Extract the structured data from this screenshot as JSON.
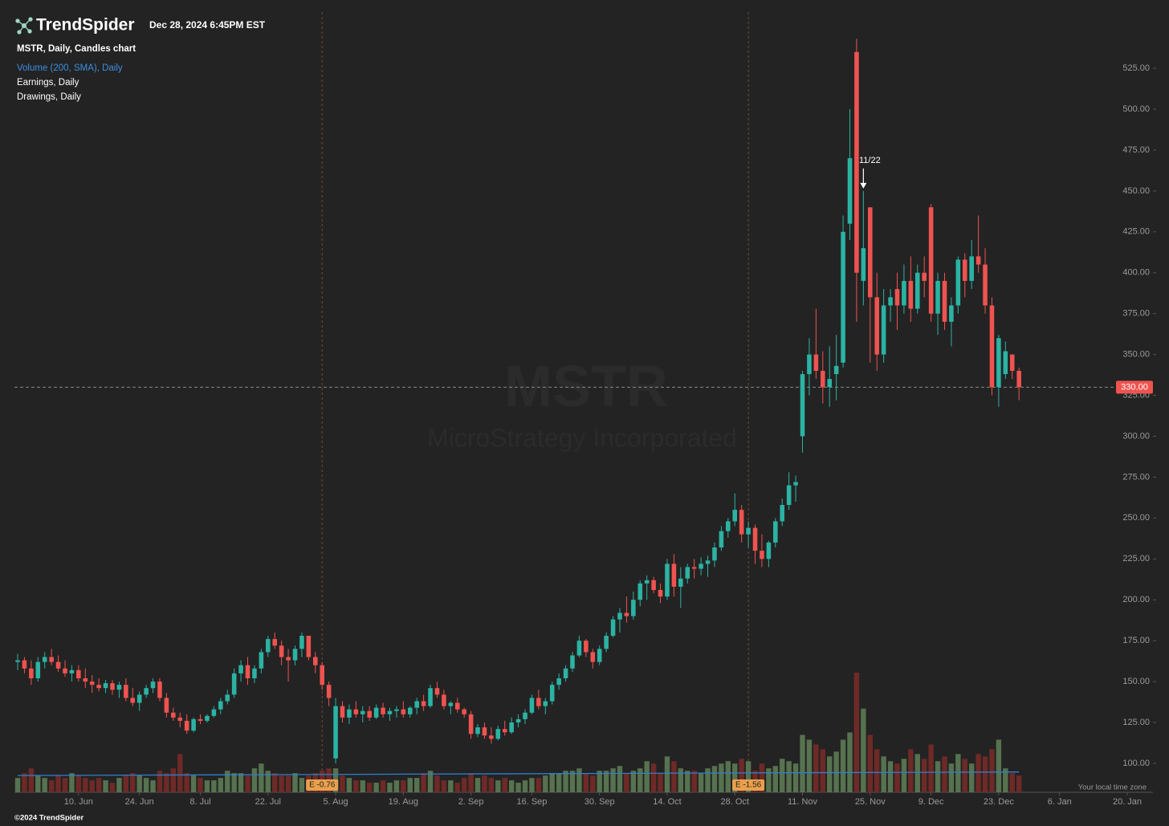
{
  "header": {
    "brand": "TrendSpider",
    "timestamp": "Dec 28, 2024 6:45PM EST"
  },
  "footer": {
    "copyright": "©2024 TrendSpider",
    "timezone": "Your local time zone"
  },
  "chart_data": {
    "type": "candlestick",
    "title": "MSTR, Daily, Candles chart",
    "indicators": [
      "Volume (200, SMA), Daily",
      "Earnings, Daily",
      "Drawings, Daily"
    ],
    "watermark": {
      "symbol": "MSTR",
      "name": "MicroStrategy Incorporated"
    },
    "up_color": "#2bb3a3",
    "down_color": "#ef5350",
    "xlim": [
      0,
      164
    ],
    "xticks": [
      {
        "value": 9,
        "label": "10. Jun"
      },
      {
        "value": 18,
        "label": "24. Jun"
      },
      {
        "value": 27,
        "label": "8. Jul"
      },
      {
        "value": 37,
        "label": "22. Jul"
      },
      {
        "value": 47,
        "label": "5. Aug"
      },
      {
        "value": 57,
        "label": "19. Aug"
      },
      {
        "value": 67,
        "label": "2. Sep"
      },
      {
        "value": 76,
        "label": "16. Sep"
      },
      {
        "value": 86,
        "label": "30. Sep"
      },
      {
        "value": 96,
        "label": "14. Oct"
      },
      {
        "value": 106,
        "label": "28. Oct"
      },
      {
        "value": 116,
        "label": "11. Nov"
      },
      {
        "value": 126,
        "label": "25. Nov"
      },
      {
        "value": 135,
        "label": "9. Dec"
      },
      {
        "value": 145,
        "label": "23. Dec"
      },
      {
        "value": 154,
        "label": "6. Jan"
      },
      {
        "value": 164,
        "label": "20. Jan"
      }
    ],
    "ylim": [
      82.3,
      559.4
    ],
    "yticks": [
      {
        "value": 100,
        "label": "100.00"
      },
      {
        "value": 125,
        "label": "125.00"
      },
      {
        "value": 150,
        "label": "150.00"
      },
      {
        "value": 175,
        "label": "175.00"
      },
      {
        "value": 200,
        "label": "200.00"
      },
      {
        "value": 225,
        "label": "225.00"
      },
      {
        "value": 250,
        "label": "250.00"
      },
      {
        "value": 275,
        "label": "275.00"
      },
      {
        "value": 300,
        "label": "300.00"
      },
      {
        "value": 325,
        "label": "325.00"
      },
      {
        "value": 350,
        "label": "350.00"
      },
      {
        "value": 375,
        "label": "375.00"
      },
      {
        "value": 400,
        "label": "400.00"
      },
      {
        "value": 425,
        "label": "425.00"
      },
      {
        "value": 450,
        "label": "450.00"
      },
      {
        "value": 475,
        "label": "475.00"
      },
      {
        "value": 500,
        "label": "500.00"
      },
      {
        "value": 525,
        "label": "525.00"
      }
    ],
    "open": [
      162,
      163,
      158,
      152,
      162,
      165,
      162,
      158,
      155,
      157,
      152,
      150,
      148,
      146,
      149,
      145,
      148,
      140,
      137,
      142,
      146,
      150,
      140,
      131,
      128,
      126,
      120,
      127,
      126,
      129,
      133,
      138,
      142,
      155,
      160,
      152,
      158,
      168,
      176,
      172,
      165,
      163,
      170,
      178,
      165,
      160,
      148,
      103,
      135,
      128,
      133,
      130,
      132,
      128,
      134,
      130,
      132,
      133,
      130,
      134,
      138,
      135,
      146,
      142,
      135,
      137,
      133,
      130,
      118,
      122,
      117,
      115,
      121,
      119,
      125,
      127,
      131,
      140,
      135,
      138,
      148,
      152,
      158,
      166,
      175,
      168,
      162,
      170,
      178,
      188,
      192,
      190,
      200,
      210,
      212,
      206,
      202,
      222,
      208,
      213,
      220,
      219,
      222,
      224,
      232,
      242,
      248,
      255,
      240,
      244,
      230,
      225,
      235,
      248,
      258,
      270,
      300,
      338,
      350,
      340,
      330,
      338,
      345,
      430,
      535,
      395,
      440,
      385,
      350,
      380,
      390,
      380,
      395,
      378,
      400,
      440,
      375,
      395,
      370,
      380,
      408,
      395,
      410,
      405,
      380,
      330,
      338,
      350,
      340
    ],
    "high": [
      167,
      165,
      163,
      165,
      168,
      170,
      166,
      163,
      160,
      160,
      158,
      154,
      152,
      151,
      151,
      150,
      152,
      146,
      144,
      148,
      152,
      152,
      143,
      134,
      131,
      130,
      128,
      130,
      130,
      135,
      140,
      145,
      158,
      163,
      165,
      160,
      170,
      178,
      180,
      175,
      170,
      172,
      180,
      178,
      168,
      162,
      150,
      140,
      138,
      136,
      138,
      135,
      135,
      136,
      137,
      134,
      135,
      138,
      135,
      140,
      142,
      148,
      150,
      145,
      138,
      140,
      134,
      132,
      124,
      125,
      122,
      123,
      126,
      128,
      130,
      133,
      142,
      145,
      140,
      150,
      155,
      160,
      168,
      178,
      176,
      170,
      172,
      180,
      190,
      195,
      202,
      205,
      212,
      215,
      214,
      210,
      225,
      228,
      220,
      222,
      225,
      226,
      227,
      235,
      245,
      250,
      265,
      258,
      248,
      246,
      240,
      236,
      250,
      262,
      278,
      276,
      340,
      360,
      378,
      352,
      355,
      362,
      435,
      500,
      543,
      450,
      440,
      400,
      390,
      390,
      400,
      405,
      410,
      405,
      410,
      442,
      400,
      400,
      385,
      410,
      412,
      420,
      435,
      415,
      385,
      362,
      358,
      350,
      342
    ],
    "low": [
      157,
      155,
      148,
      150,
      158,
      160,
      156,
      153,
      150,
      150,
      146,
      143,
      144,
      143,
      142,
      140,
      138,
      135,
      132,
      140,
      143,
      138,
      128,
      126,
      122,
      118,
      119,
      124,
      125,
      128,
      130,
      136,
      140,
      150,
      148,
      149,
      155,
      165,
      170,
      160,
      150,
      160,
      165,
      163,
      155,
      145,
      135,
      100,
      125,
      124,
      128,
      125,
      126,
      127,
      128,
      126,
      128,
      128,
      128,
      130,
      132,
      134,
      140,
      133,
      130,
      131,
      128,
      115,
      116,
      115,
      112,
      114,
      117,
      118,
      122,
      124,
      130,
      133,
      130,
      136,
      145,
      150,
      156,
      165,
      165,
      158,
      160,
      168,
      177,
      180,
      186,
      188,
      196,
      200,
      204,
      198,
      200,
      202,
      195,
      210,
      213,
      215,
      214,
      220,
      230,
      238,
      245,
      235,
      232,
      222,
      220,
      220,
      232,
      245,
      255,
      260,
      290,
      325,
      335,
      320,
      318,
      322,
      342,
      420,
      370,
      380,
      345,
      340,
      345,
      370,
      365,
      375,
      370,
      375,
      385,
      370,
      362,
      365,
      355,
      375,
      385,
      390,
      400,
      375,
      325,
      318,
      335,
      335,
      322
    ],
    "close": [
      163,
      158,
      152,
      162,
      165,
      162,
      158,
      155,
      157,
      152,
      150,
      148,
      146,
      149,
      145,
      148,
      140,
      137,
      142,
      146,
      150,
      140,
      131,
      128,
      126,
      120,
      127,
      126,
      129,
      133,
      138,
      142,
      155,
      160,
      152,
      158,
      168,
      176,
      172,
      165,
      163,
      170,
      178,
      165,
      160,
      148,
      140,
      135,
      128,
      133,
      130,
      132,
      128,
      134,
      130,
      132,
      133,
      130,
      134,
      138,
      135,
      146,
      142,
      135,
      137,
      133,
      130,
      118,
      122,
      117,
      115,
      121,
      119,
      125,
      127,
      131,
      140,
      135,
      138,
      148,
      152,
      158,
      166,
      175,
      168,
      162,
      170,
      178,
      188,
      192,
      190,
      200,
      210,
      212,
      206,
      202,
      222,
      208,
      213,
      220,
      219,
      222,
      224,
      232,
      242,
      248,
      255,
      240,
      244,
      230,
      225,
      235,
      248,
      258,
      270,
      272,
      338,
      350,
      340,
      330,
      335,
      343,
      425,
      470,
      400,
      415,
      385,
      350,
      380,
      385,
      380,
      395,
      378,
      400,
      395,
      375,
      395,
      370,
      380,
      408,
      395,
      410,
      405,
      380,
      330,
      360,
      352,
      340,
      330
    ],
    "volume": {
      "ylim": [
        0,
        50
      ],
      "up_color": "#56724f",
      "down_color": "#6e2a27",
      "values": [
        6,
        8,
        10,
        7,
        6,
        5,
        7,
        6,
        8,
        7,
        6,
        5,
        6,
        5,
        4,
        6,
        7,
        8,
        7,
        6,
        5,
        9,
        8,
        10,
        16,
        8,
        7,
        6,
        5,
        5,
        6,
        9,
        8,
        8,
        7,
        10,
        12,
        9,
        8,
        7,
        7,
        8,
        6,
        7,
        8,
        9,
        10,
        10,
        7,
        6,
        5,
        5,
        4,
        4,
        5,
        4,
        5,
        5,
        6,
        6,
        8,
        9,
        7,
        5,
        5,
        4,
        6,
        8,
        6,
        7,
        6,
        5,
        6,
        5,
        4,
        5,
        6,
        6,
        7,
        8,
        8,
        9,
        9,
        10,
        8,
        7,
        9,
        9,
        10,
        11,
        8,
        9,
        10,
        13,
        12,
        8,
        15,
        13,
        10,
        9,
        9,
        8,
        10,
        11,
        12,
        13,
        12,
        14,
        13,
        9,
        12,
        10,
        11,
        14,
        13,
        12,
        24,
        22,
        20,
        18,
        15,
        17,
        22,
        25,
        50,
        35,
        24,
        18,
        15,
        13,
        12,
        14,
        18,
        16,
        14,
        20,
        13,
        15,
        12,
        16,
        14,
        12,
        16,
        15,
        18,
        22,
        10,
        8,
        7
      ],
      "sma": {
        "color": "#2f7fd0",
        "x": [
          0,
          148
        ],
        "values": [
          7,
          8.5
        ]
      }
    },
    "earnings": [
      {
        "x": 45,
        "label": "E -0.76"
      },
      {
        "x": 108,
        "label": "E -1.56"
      }
    ],
    "annotation": {
      "x": 125,
      "text": "11/22"
    },
    "last_price": {
      "value": 330,
      "label": "330.00"
    }
  }
}
